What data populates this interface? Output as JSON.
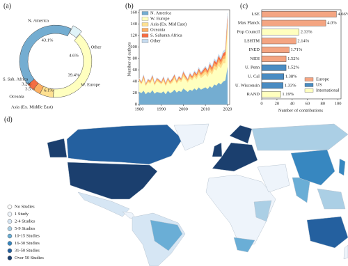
{
  "chart_data": [
    {
      "type": "pie",
      "panel_label": "(a)",
      "categories": [
        "N. America",
        "Other",
        "W. Europe",
        "Asia (Ex. Middle East)",
        "Oceania",
        "S. Sah. Africa"
      ],
      "values": [
        43.1,
        4.6,
        39.4,
        6.1,
        3.5,
        3.2
      ],
      "value_labels": [
        "43.1%",
        "4.6%",
        "39.4%",
        "6.1%",
        "3.5%",
        "3.2%"
      ],
      "colors": [
        "#74add1",
        "#e0f3f8",
        "#ffffbf",
        "#fee090",
        "#fdae61",
        "#f46d43"
      ]
    },
    {
      "type": "area",
      "panel_label": "(b)",
      "y_label": "Number of authors",
      "x": [
        1980,
        1981,
        1982,
        1983,
        1984,
        1985,
        1986,
        1987,
        1988,
        1989,
        1990,
        1991,
        1992,
        1993,
        1994,
        1995,
        1996,
        1997,
        1998,
        1999,
        2000,
        2001,
        2002,
        2003,
        2004,
        2005,
        2006,
        2007,
        2008,
        2009,
        2010,
        2011,
        2012,
        2013,
        2014,
        2015,
        2016,
        2017,
        2018,
        2019,
        2020
      ],
      "series": [
        {
          "name": "N. America",
          "color": "#74add1",
          "values": [
            22,
            20,
            24,
            18,
            22,
            20,
            25,
            19,
            22,
            21,
            20,
            23,
            18,
            24,
            20,
            22,
            26,
            21,
            24,
            22,
            28,
            25,
            22,
            26,
            24,
            28,
            25,
            30,
            26,
            28,
            30,
            27,
            32,
            29,
            35,
            33,
            38,
            35,
            40,
            42,
            65
          ]
        },
        {
          "name": "W. Europe",
          "color": "#ffffbf",
          "values": [
            18,
            15,
            20,
            14,
            17,
            16,
            19,
            14,
            18,
            17,
            15,
            18,
            14,
            17,
            15,
            16,
            19,
            15,
            18,
            17,
            20,
            18,
            16,
            19,
            18,
            20,
            19,
            22,
            20,
            21,
            23,
            21,
            25,
            23,
            27,
            26,
            30,
            28,
            32,
            30,
            60
          ]
        },
        {
          "name": "Asia (Ex. Mid East)",
          "color": "#fee090",
          "values": [
            2,
            2,
            3,
            2,
            2,
            2,
            3,
            2,
            3,
            2,
            2,
            3,
            2,
            3,
            2,
            3,
            3,
            2,
            3,
            3,
            4,
            3,
            3,
            4,
            3,
            4,
            4,
            5,
            4,
            5,
            5,
            5,
            6,
            5,
            6,
            6,
            7,
            6,
            7,
            8,
            15
          ]
        },
        {
          "name": "Oceania",
          "color": "#fdae61",
          "values": [
            2,
            1,
            2,
            1,
            2,
            2,
            2,
            1,
            2,
            2,
            1,
            2,
            2,
            2,
            2,
            2,
            2,
            2,
            2,
            2,
            3,
            2,
            2,
            3,
            2,
            3,
            3,
            3,
            3,
            3,
            4,
            3,
            4,
            4,
            5,
            4,
            5,
            5,
            5,
            6,
            8
          ]
        },
        {
          "name": "S. Saharan Africa",
          "color": "#f46d43",
          "values": [
            1,
            1,
            2,
            1,
            1,
            1,
            2,
            1,
            1,
            1,
            1,
            2,
            1,
            1,
            1,
            2,
            2,
            1,
            2,
            1,
            2,
            2,
            1,
            2,
            2,
            2,
            2,
            3,
            2,
            3,
            3,
            3,
            4,
            3,
            4,
            4,
            5,
            4,
            5,
            6,
            6
          ]
        },
        {
          "name": "Other",
          "color": "#c6dbef",
          "values": [
            1,
            1,
            1,
            1,
            1,
            1,
            1,
            1,
            1,
            1,
            1,
            1,
            1,
            1,
            1,
            1,
            1,
            1,
            1,
            1,
            2,
            1,
            1,
            2,
            1,
            2,
            2,
            2,
            2,
            2,
            2,
            2,
            3,
            2,
            3,
            3,
            3,
            3,
            4,
            4,
            5
          ]
        }
      ],
      "xlim": [
        1980,
        2021
      ],
      "xticks": [
        1980,
        1990,
        2000,
        2010,
        2020
      ],
      "ylim": [
        0,
        165
      ],
      "yticks": [
        0,
        20,
        40,
        60,
        80,
        100,
        120,
        140,
        160
      ]
    },
    {
      "type": "hbar",
      "panel_label": "(c)",
      "x_label": "Number of contributions",
      "categories": [
        "LSE",
        "Max Planck",
        "Pop Council",
        "LSHTM",
        "INED",
        "NIDI",
        "U. Penn",
        "U. Cal",
        "U. Wisconsin",
        "RAND"
      ],
      "values": [
        98,
        84,
        49,
        45,
        36,
        32,
        32,
        29,
        28,
        25
      ],
      "share_labels": [
        "4.66%",
        "4.0%",
        "2.33%",
        "2.14%",
        "1.71%",
        "1.52%",
        "1.52%",
        "1.38%",
        "1.33%",
        "1.19%"
      ],
      "groups": [
        "Europe",
        "Europe",
        "International",
        "Europe",
        "Europe",
        "Europe",
        "US",
        "US",
        "US",
        "International"
      ],
      "legend": [
        {
          "name": "Europe",
          "color": "#f4a582"
        },
        {
          "name": "US",
          "color": "#4a8cc2"
        },
        {
          "name": "International",
          "color": "#ffffbf"
        }
      ],
      "xlim": [
        0,
        104
      ],
      "xticks": [
        0,
        20,
        40,
        60,
        80,
        100
      ]
    },
    {
      "type": "choropleth",
      "panel_label": "(d)",
      "legend": [
        "No Studies",
        "1 Study",
        "2-4 Studies",
        "5-9 Studies",
        "10-15 Studies",
        "16-30 Studies",
        "31-50 Studies",
        "Over 50 Studies"
      ],
      "colors": [
        "#ffffff",
        "#eef4fb",
        "#d6e6f4",
        "#abcfe5",
        "#6aaed6",
        "#3787c0",
        "#24609f",
        "#1b3f6e"
      ]
    }
  ]
}
